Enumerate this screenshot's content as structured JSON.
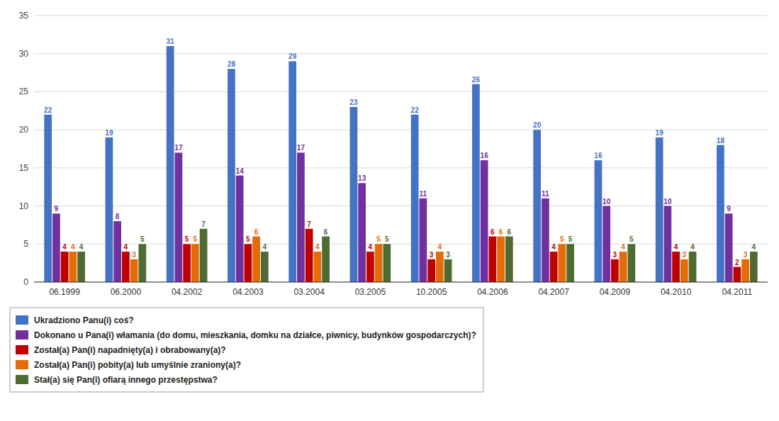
{
  "chart_data": {
    "type": "bar",
    "categories": [
      "06.1999",
      "06.2000",
      "04.2002",
      "04.2003",
      "03.2004",
      "03.2005",
      "10.2005",
      "04.2006",
      "04.2007",
      "04.2009",
      "04.2010",
      "04.2011"
    ],
    "series": [
      {
        "name": "Ukradziono Panu(i) coś?",
        "color": "#4472C4",
        "values": [
          22,
          19,
          31,
          28,
          29,
          23,
          22,
          26,
          20,
          16,
          19,
          18
        ]
      },
      {
        "name": "Dokonano u Pana(i) włamania (do domu, mieszkania, domku na działce, piwnicy, budynków gospodarczych)?",
        "color": "#7030A0",
        "values": [
          9,
          8,
          17,
          14,
          17,
          13,
          11,
          16,
          11,
          10,
          10,
          9
        ]
      },
      {
        "name": "Został(a) Pan(i) napadnięty(a) i obrabowany(a)?",
        "color": "#C00000",
        "values": [
          4,
          4,
          5,
          5,
          7,
          4,
          3,
          6,
          4,
          3,
          4,
          2
        ]
      },
      {
        "name": "Został(a) Pan(i) pobity(a) lub umyślnie zraniony(a)?",
        "color": "#E36C09",
        "values": [
          4,
          3,
          5,
          6,
          4,
          5,
          4,
          6,
          5,
          4,
          3,
          3
        ]
      },
      {
        "name": "Stał(a) się Pan(i) ofiarą innego przestępstwa?",
        "color": "#4E6B31",
        "values": [
          4,
          5,
          7,
          4,
          6,
          5,
          3,
          6,
          5,
          5,
          4,
          4
        ]
      }
    ],
    "ylim": [
      0,
      35
    ],
    "yticks": [
      0,
      5,
      10,
      15,
      20,
      25,
      30,
      35
    ],
    "grid": true,
    "legend": "bottom",
    "data_labels": true
  }
}
